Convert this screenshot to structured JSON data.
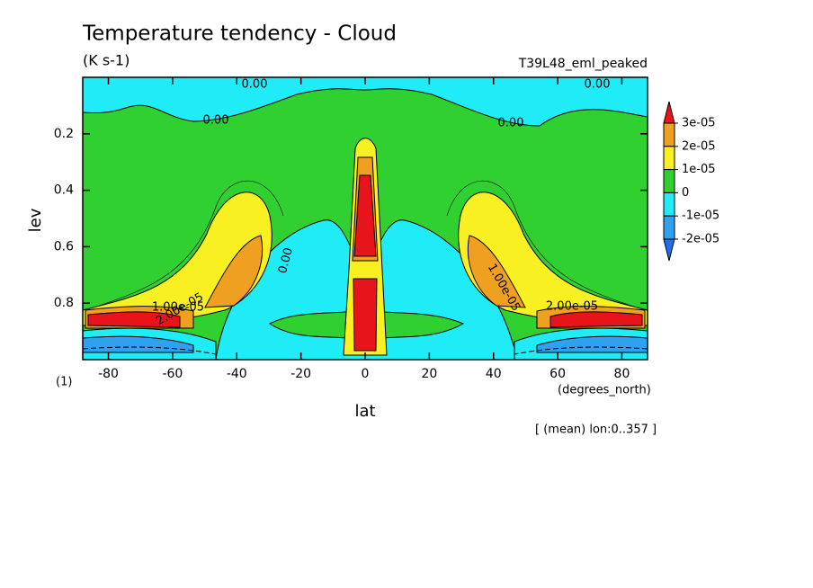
{
  "chart_data": {
    "type": "contour",
    "title": "Temperature tendency - Cloud",
    "subtitle": "(K s-1)",
    "run_label": "T39L48_eml_peaked",
    "x_label": "lat",
    "y_label": "lev",
    "x_units": "(degrees_north)",
    "y_units": "(1)",
    "footer": "[ (mean) lon:0..357 ]",
    "xlim": [
      -88,
      88
    ],
    "xticks": [
      -80,
      -60,
      -40,
      -20,
      0,
      20,
      40,
      60,
      80
    ],
    "ylim": [
      1,
      0
    ],
    "yticks": [
      0.2,
      0.4,
      0.6,
      0.8
    ],
    "contour_labels": [
      "0.00",
      "0.00",
      "0.00",
      "0.00",
      "0.00",
      "1.00e-05",
      "2.00e-05",
      "1.00e-05",
      "2.00e-05"
    ],
    "colorbar": {
      "ticks": [
        {
          "value": 3e-05,
          "label": "3e-05"
        },
        {
          "value": 2e-05,
          "label": "2e-05"
        },
        {
          "value": 1e-05,
          "label": "1e-05"
        },
        0,
        {
          "value": -1e-05,
          "label": "-1e-05"
        },
        {
          "value": -2e-05,
          "label": "-2e-05"
        }
      ],
      "colors": [
        "#e8141c",
        "#f0a020",
        "#f8f020",
        "#30d030",
        "#20ecf8",
        "#30a0f0",
        "#1e6ef0"
      ]
    }
  }
}
